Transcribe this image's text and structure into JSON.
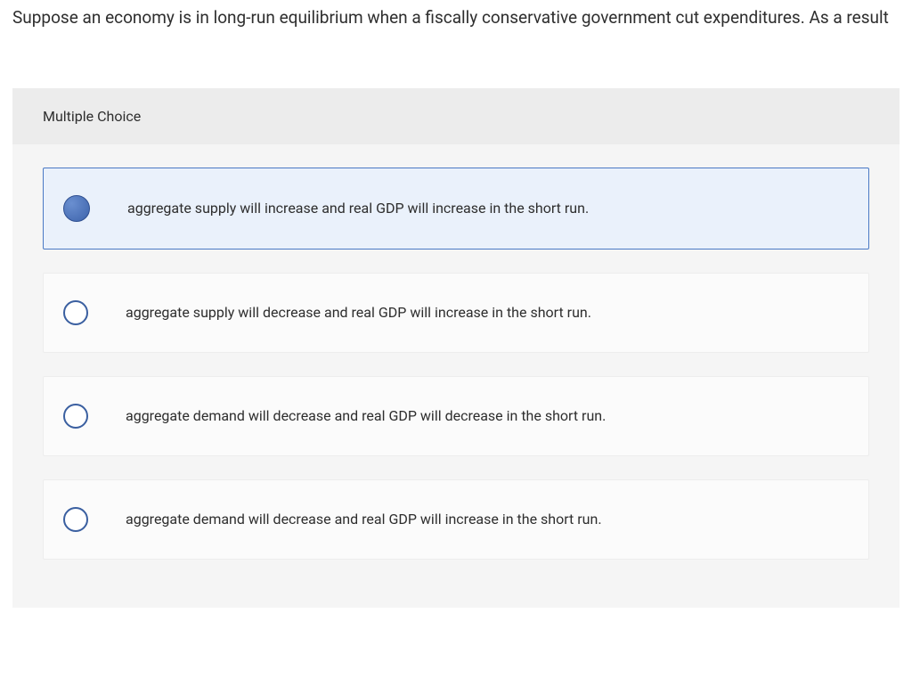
{
  "question": {
    "stem": "Suppose an economy is in long-run equilibrium when a fiscally conservative government cut expenditures. As a result",
    "type_label": "Multiple Choice"
  },
  "options": [
    {
      "text": "aggregate supply will increase and real GDP will increase in the short run.",
      "selected": true
    },
    {
      "text": "aggregate supply will decrease and real GDP will increase in the short run.",
      "selected": false
    },
    {
      "text": "aggregate demand will decrease and real GDP will decrease in the short run.",
      "selected": false
    },
    {
      "text": "aggregate demand will decrease and real GDP will increase in the short run.",
      "selected": false
    }
  ],
  "styles": {
    "selected_bg": "#eaf1fb",
    "selected_border": "#4a79c4",
    "radio_border": "#3a5fa0",
    "panel_bg": "#f5f5f5",
    "header_bg": "#ececec",
    "option_bg": "#fbfbfb"
  }
}
